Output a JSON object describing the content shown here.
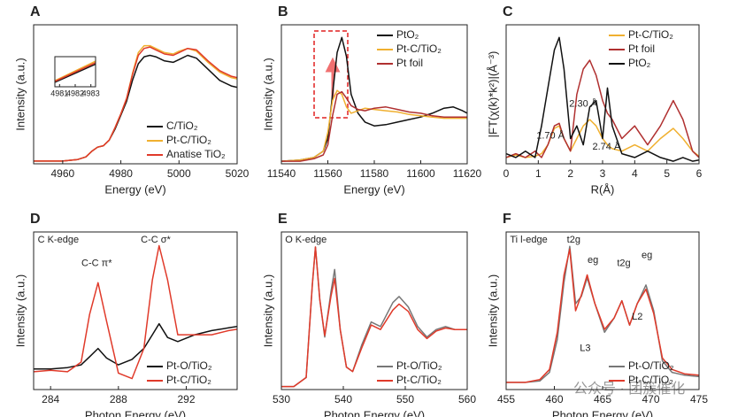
{
  "chart_data": [
    {
      "type": "line",
      "panel": "A",
      "xlabel": "Energy (eV)",
      "ylabel": "Intensity (a.u.)",
      "xlim": [
        4950,
        5020
      ],
      "xticks": [
        4960,
        4980,
        5000,
        5020
      ],
      "ylim": [
        0,
        1
      ],
      "legend": "lower right",
      "x": [
        4950,
        4955,
        4960,
        4965,
        4968,
        4970,
        4972,
        4974,
        4976,
        4978,
        4980,
        4982,
        4984,
        4986,
        4988,
        4990,
        4992,
        4995,
        4998,
        5000,
        5003,
        5006,
        5010,
        5014,
        5018,
        5020
      ],
      "series": [
        {
          "name": "C/TiO₂",
          "color": "#111111",
          "values": [
            0.02,
            0.02,
            0.02,
            0.03,
            0.05,
            0.09,
            0.12,
            0.13,
            0.17,
            0.25,
            0.35,
            0.45,
            0.6,
            0.72,
            0.77,
            0.78,
            0.77,
            0.74,
            0.73,
            0.75,
            0.78,
            0.76,
            0.68,
            0.6,
            0.56,
            0.55
          ]
        },
        {
          "name": "Pt-C/TiO₂",
          "color": "#f0b030",
          "values": [
            0.02,
            0.02,
            0.02,
            0.03,
            0.05,
            0.09,
            0.12,
            0.13,
            0.17,
            0.26,
            0.36,
            0.47,
            0.65,
            0.8,
            0.85,
            0.85,
            0.83,
            0.8,
            0.79,
            0.81,
            0.83,
            0.81,
            0.73,
            0.66,
            0.62,
            0.61
          ]
        },
        {
          "name": "Anatise TiO₂",
          "color": "#e03a2a",
          "values": [
            0.02,
            0.02,
            0.02,
            0.03,
            0.05,
            0.09,
            0.12,
            0.13,
            0.17,
            0.26,
            0.36,
            0.47,
            0.64,
            0.78,
            0.83,
            0.84,
            0.82,
            0.79,
            0.78,
            0.8,
            0.83,
            0.82,
            0.74,
            0.67,
            0.63,
            0.62
          ]
        }
      ],
      "inset": {
        "xlim": [
          4980.7,
          4983.3
        ],
        "xticks": [
          4981,
          4982,
          4983
        ],
        "ylim": [
          0,
          1
        ],
        "x": [
          4980.7,
          4983.3
        ],
        "series": [
          {
            "color": "#111111",
            "values": [
              0.15,
              0.75
            ]
          },
          {
            "color": "#f0b030",
            "values": [
              0.2,
              0.85
            ]
          },
          {
            "color": "#e03a2a",
            "values": [
              0.18,
              0.8
            ]
          }
        ]
      }
    },
    {
      "type": "line",
      "panel": "B",
      "xlabel": "Energy (eV)",
      "ylabel": "Intensity (a.u.)",
      "xlim": [
        11540,
        11620
      ],
      "xticks": [
        11540,
        11560,
        11580,
        11600,
        11620
      ],
      "ylim": [
        0,
        1.1
      ],
      "legend": "upper right",
      "x": [
        11540,
        11548,
        11554,
        11558,
        11560,
        11562,
        11564,
        11566,
        11568,
        11570,
        11573,
        11576,
        11580,
        11585,
        11590,
        11595,
        11600,
        11605,
        11610,
        11614,
        11618,
        11620
      ],
      "series": [
        {
          "name": "PtO₂",
          "color": "#111111",
          "values": [
            0.02,
            0.03,
            0.05,
            0.1,
            0.2,
            0.55,
            0.88,
            1.0,
            0.85,
            0.55,
            0.4,
            0.33,
            0.3,
            0.31,
            0.33,
            0.35,
            0.37,
            0.4,
            0.44,
            0.45,
            0.42,
            0.4
          ]
        },
        {
          "name": "Pt-C/TiO₂",
          "color": "#f0b030",
          "values": [
            0.02,
            0.03,
            0.05,
            0.1,
            0.25,
            0.5,
            0.58,
            0.55,
            0.45,
            0.4,
            0.42,
            0.44,
            0.43,
            0.42,
            0.41,
            0.39,
            0.38,
            0.37,
            0.36,
            0.36,
            0.36,
            0.36
          ]
        },
        {
          "name": "Pt foil",
          "color": "#b03030",
          "values": [
            0.02,
            0.02,
            0.04,
            0.07,
            0.15,
            0.38,
            0.55,
            0.57,
            0.52,
            0.46,
            0.43,
            0.42,
            0.44,
            0.45,
            0.43,
            0.41,
            0.4,
            0.38,
            0.37,
            0.37,
            0.37,
            0.37
          ]
        }
      ]
    },
    {
      "type": "line",
      "panel": "C",
      "xlabel": "R(Å)",
      "ylabel": "|FT(χ(k)*k²)|(Å⁻³)",
      "xlim": [
        0,
        6
      ],
      "xticks": [
        0,
        1,
        2,
        3,
        4,
        5,
        6
      ],
      "ylim": [
        0,
        1.1
      ],
      "legend": "upper right",
      "annotations": [
        "1.70 Å",
        "2.30 Å",
        "2.74 Å"
      ],
      "x": [
        0,
        0.3,
        0.6,
        0.9,
        1.1,
        1.3,
        1.5,
        1.65,
        1.8,
        2.0,
        2.2,
        2.4,
        2.6,
        2.8,
        3.0,
        3.15,
        3.3,
        3.6,
        4.0,
        4.4,
        4.8,
        5.2,
        5.5,
        5.8,
        6.0
      ],
      "series": [
        {
          "name": "Pt-C/TiO₂",
          "color": "#f0b030",
          "values": [
            0.05,
            0.07,
            0.05,
            0.06,
            0.08,
            0.15,
            0.28,
            0.3,
            0.2,
            0.1,
            0.2,
            0.3,
            0.35,
            0.3,
            0.2,
            0.15,
            0.12,
            0.1,
            0.15,
            0.1,
            0.2,
            0.28,
            0.2,
            0.1,
            0.06
          ]
        },
        {
          "name": "Pt foil",
          "color": "#b03030",
          "values": [
            0.05,
            0.08,
            0.05,
            0.1,
            0.05,
            0.15,
            0.3,
            0.32,
            0.2,
            0.1,
            0.55,
            0.75,
            0.82,
            0.7,
            0.5,
            0.4,
            0.35,
            0.2,
            0.3,
            0.15,
            0.3,
            0.5,
            0.35,
            0.1,
            0.05
          ]
        },
        {
          "name": "PtO₂",
          "color": "#111111",
          "values": [
            0.08,
            0.05,
            0.1,
            0.05,
            0.3,
            0.6,
            0.9,
            1.0,
            0.75,
            0.2,
            0.3,
            0.15,
            0.45,
            0.5,
            0.2,
            0.6,
            0.3,
            0.08,
            0.05,
            0.1,
            0.05,
            0.02,
            0.05,
            0.02,
            0.03
          ]
        }
      ]
    },
    {
      "type": "line",
      "panel": "D",
      "xlabel": "Photon Energy (eV)",
      "ylabel": "Intensity (a.u.)",
      "xlim": [
        283,
        295
      ],
      "xticks": [
        284,
        288,
        292
      ],
      "ylim": [
        -0.1,
        1.05
      ],
      "legend": "lower right",
      "annotations": [
        "C K-edge",
        "C-C π*",
        "C-C σ*"
      ],
      "x": [
        283,
        284,
        285,
        285.8,
        286.3,
        286.8,
        287.3,
        288,
        288.8,
        289.5,
        290,
        290.4,
        290.9,
        291.5,
        292.5,
        293.5,
        294.5,
        295
      ],
      "series": [
        {
          "name": "Pt-O/TiO₂",
          "color": "#111111",
          "values": [
            0.05,
            0.05,
            0.06,
            0.08,
            0.14,
            0.2,
            0.13,
            0.08,
            0.12,
            0.2,
            0.3,
            0.38,
            0.28,
            0.25,
            0.3,
            0.33,
            0.35,
            0.36
          ]
        },
        {
          "name": "Pt-C/TiO₂",
          "color": "#e03a2a",
          "values": [
            0.03,
            0.04,
            0.03,
            0.1,
            0.45,
            0.68,
            0.4,
            0.02,
            -0.02,
            0.2,
            0.7,
            0.95,
            0.7,
            0.3,
            0.3,
            0.3,
            0.33,
            0.34
          ]
        }
      ]
    },
    {
      "type": "line",
      "panel": "E",
      "xlabel": "Photon Energy (eV)",
      "ylabel": "Intensity (a.u.)",
      "xlim": [
        530,
        560
      ],
      "xticks": [
        530,
        540,
        550,
        560
      ],
      "ylim": [
        0,
        1.05
      ],
      "legend": "lower right",
      "annotations": [
        "O K-edge"
      ],
      "x": [
        530,
        532,
        534,
        535,
        535.5,
        536.2,
        537,
        538,
        538.6,
        539.5,
        540.5,
        541.5,
        543,
        544.5,
        546,
        548,
        549,
        550.5,
        552,
        553.5,
        555,
        556.5,
        558,
        560
      ],
      "series": [
        {
          "name": "Pt-O/TiO₂",
          "color": "#777777",
          "values": [
            0.02,
            0.02,
            0.08,
            0.7,
            0.95,
            0.6,
            0.35,
            0.65,
            0.8,
            0.4,
            0.15,
            0.12,
            0.3,
            0.45,
            0.42,
            0.58,
            0.62,
            0.55,
            0.42,
            0.35,
            0.4,
            0.42,
            0.4,
            0.4
          ]
        },
        {
          "name": "Pt-C/TiO₂",
          "color": "#e03a2a",
          "values": [
            0.02,
            0.02,
            0.08,
            0.7,
            0.95,
            0.6,
            0.36,
            0.62,
            0.74,
            0.4,
            0.15,
            0.12,
            0.28,
            0.43,
            0.4,
            0.53,
            0.57,
            0.52,
            0.4,
            0.34,
            0.39,
            0.41,
            0.4,
            0.4
          ]
        }
      ]
    },
    {
      "type": "line",
      "panel": "F",
      "xlabel": "Photon Energy (eV)",
      "ylabel": "Intensity (a.u.)",
      "xlim": [
        455,
        475
      ],
      "xticks": [
        455,
        460,
        465,
        470,
        475
      ],
      "ylim": [
        0,
        1.1
      ],
      "legend": "lower right",
      "annotations": [
        "Ti l-edge",
        "t2g",
        "eg",
        "t2g",
        "eg",
        "L3",
        "L2"
      ],
      "x": [
        455,
        457,
        458.5,
        459.5,
        460.3,
        461,
        461.6,
        462.2,
        462.8,
        463.4,
        464.2,
        465.2,
        466.2,
        467,
        467.8,
        468.6,
        469.5,
        470.3,
        471.2,
        472.2,
        473.5,
        475
      ],
      "series": [
        {
          "name": "Pt-O/TiO₂",
          "color": "#777777",
          "values": [
            0.05,
            0.05,
            0.06,
            0.12,
            0.35,
            0.75,
            1.0,
            0.6,
            0.65,
            0.78,
            0.6,
            0.4,
            0.5,
            0.62,
            0.45,
            0.6,
            0.73,
            0.55,
            0.2,
            0.12,
            0.1,
            0.09
          ]
        },
        {
          "name": "Pt-C/TiO₂",
          "color": "#e03a2a",
          "values": [
            0.05,
            0.05,
            0.07,
            0.14,
            0.4,
            0.8,
            0.98,
            0.55,
            0.66,
            0.8,
            0.6,
            0.42,
            0.5,
            0.62,
            0.45,
            0.6,
            0.7,
            0.53,
            0.22,
            0.14,
            0.11,
            0.1
          ]
        }
      ]
    }
  ],
  "watermark": "公众号 · 团簇催化"
}
